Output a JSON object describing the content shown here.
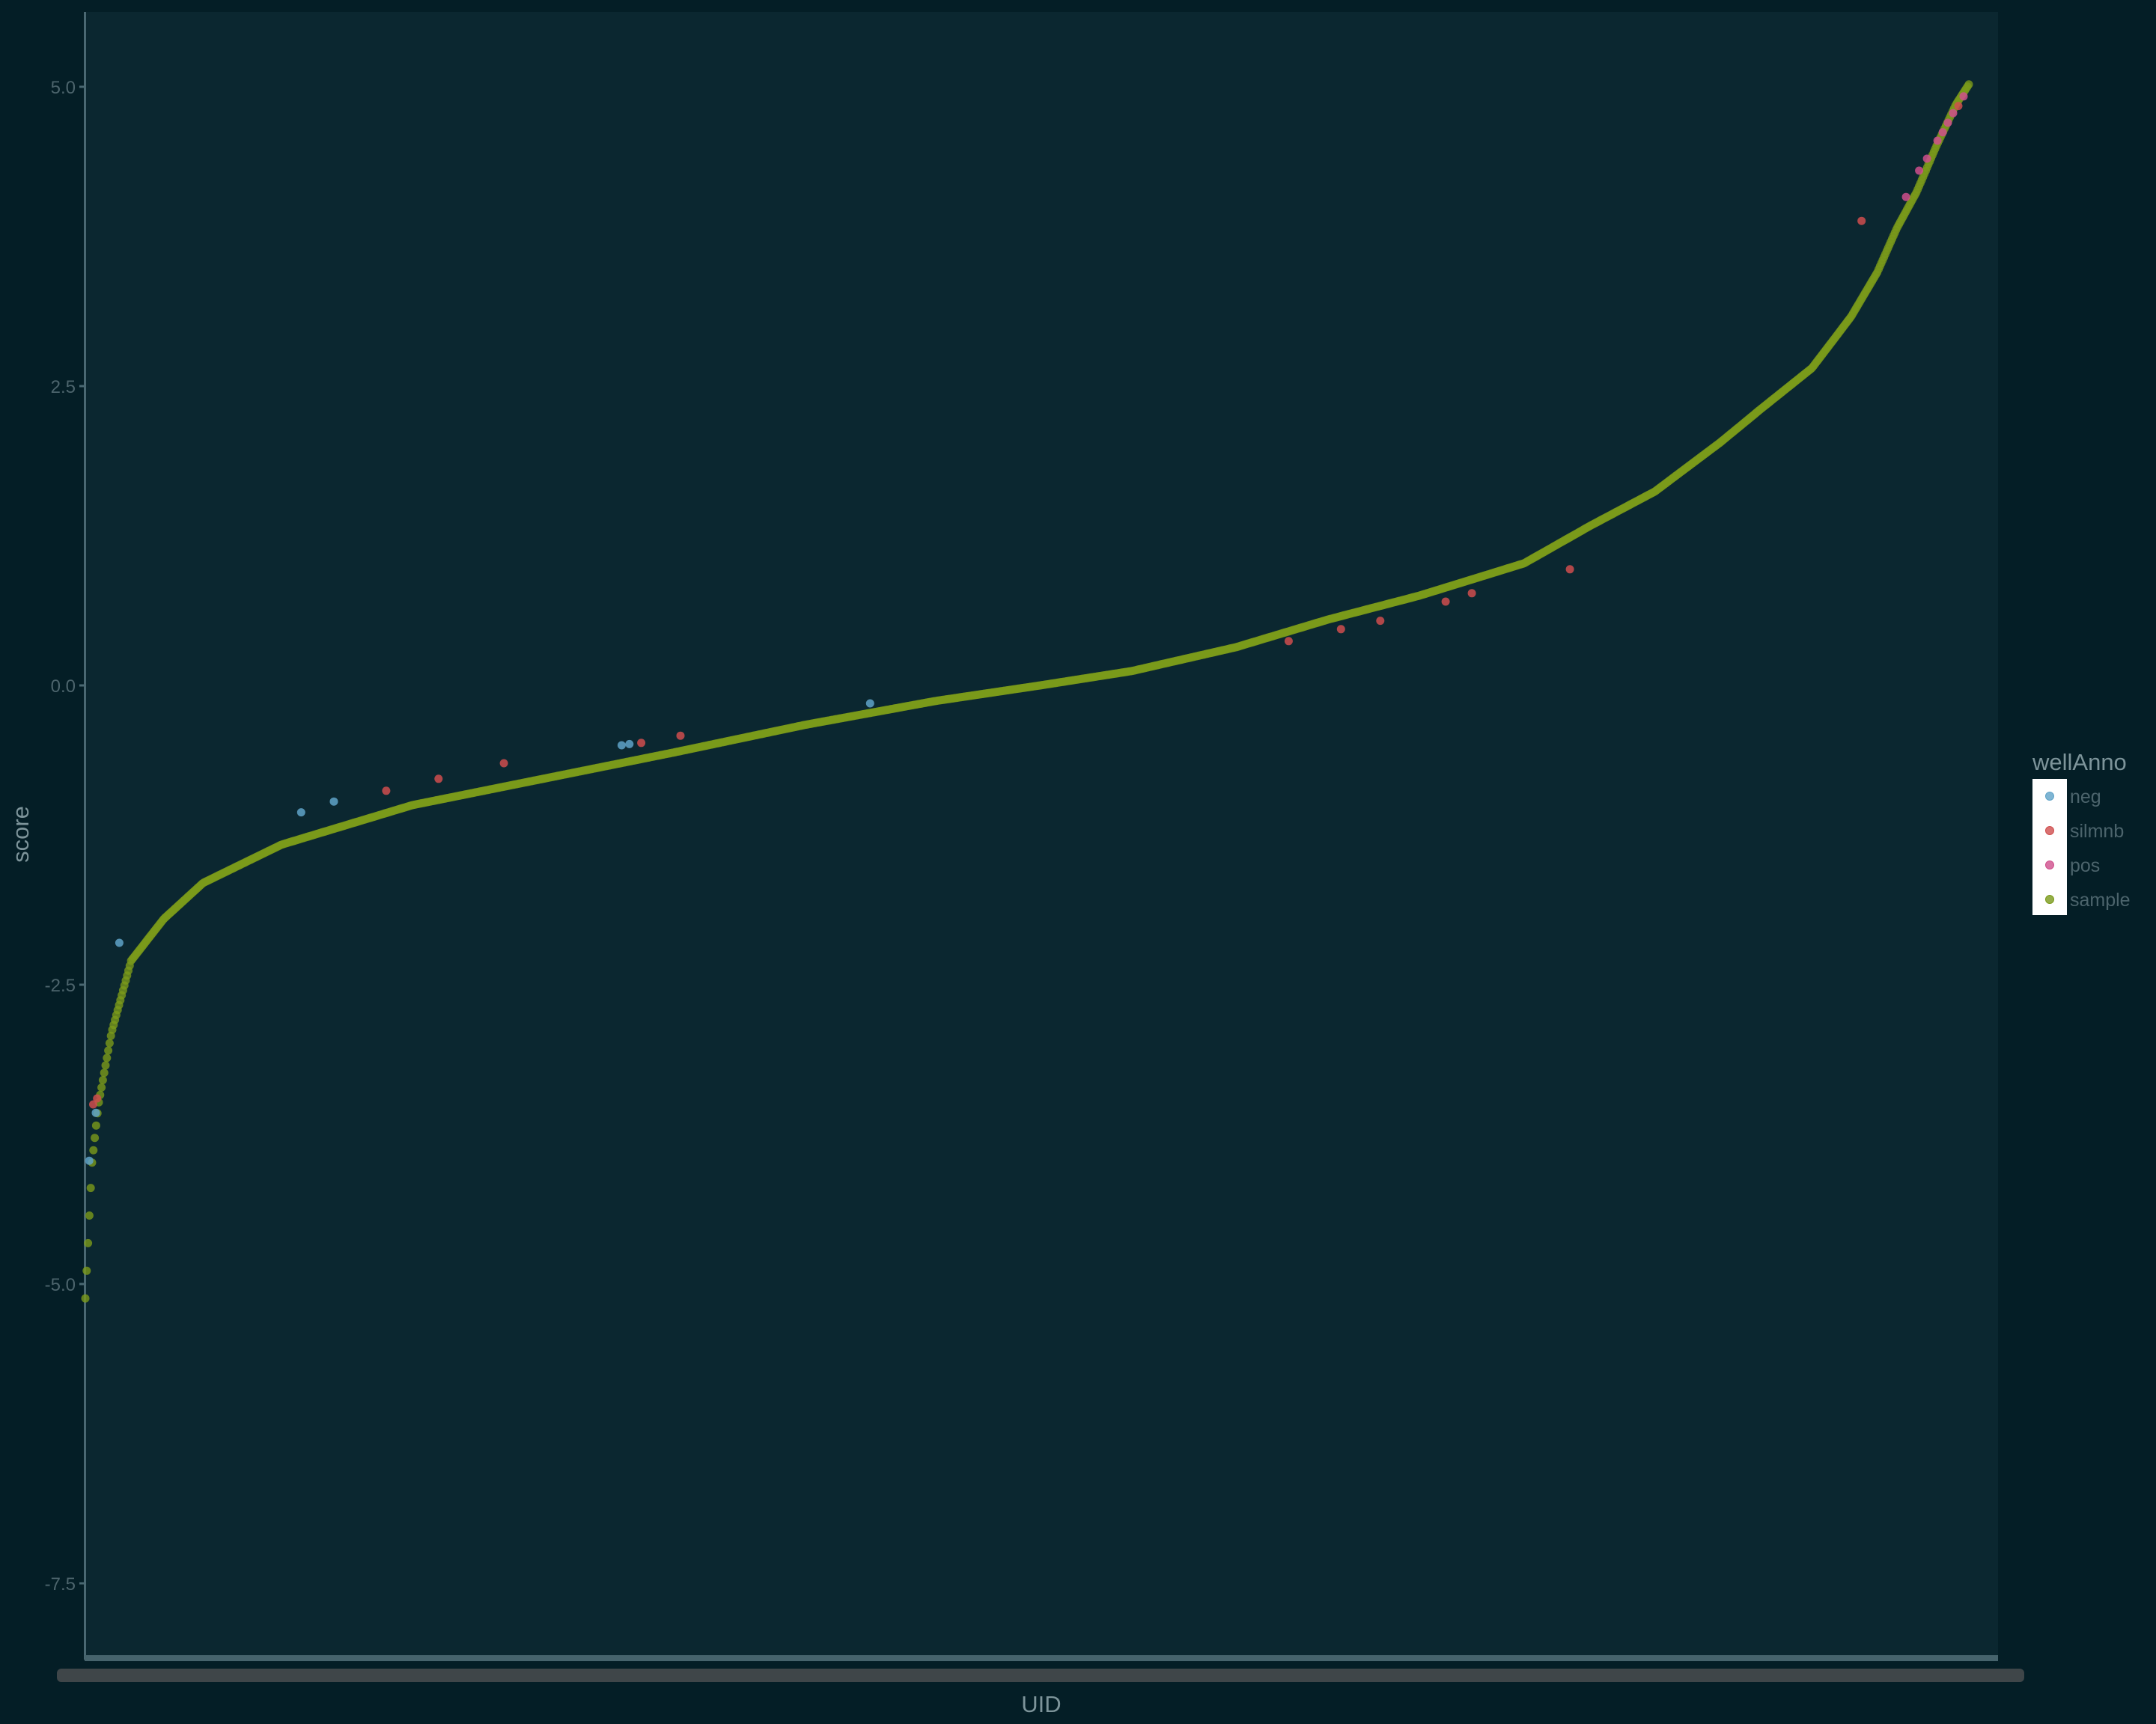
{
  "chart_data": {
    "type": "scatter",
    "title": "",
    "xlabel": "UID",
    "ylabel": "score",
    "ylim": [
      -8.05,
      5.55
    ],
    "y_ticks": [
      5.0,
      2.5,
      0.0,
      -2.5,
      -5.0,
      -7.5
    ],
    "y_tick_labels": [
      "5.0",
      "2.5",
      "0.0",
      "-2.5",
      "-5.0",
      "-7.5"
    ],
    "x_tick_labels": "unreadable (overplotted UID labels)",
    "grid": false,
    "legend": {
      "title": "wellAnno",
      "position": "right",
      "entries": [
        {
          "label": "neg",
          "color": "#5fa3c8"
        },
        {
          "label": "silmnb",
          "color": "#cf4e4e"
        },
        {
          "label": "pos",
          "color": "#cf4f8c"
        },
        {
          "label": "sample",
          "color": "#7a9a1a"
        }
      ]
    },
    "n_points": 1400,
    "curve_knots": [
      [
        0.0,
        -5.12
      ],
      [
        0.5,
        -4.0
      ],
      [
        1.0,
        -3.5
      ],
      [
        2.0,
        -2.9
      ],
      [
        3.5,
        -2.3
      ],
      [
        6.0,
        -1.95
      ],
      [
        9.0,
        -1.65
      ],
      [
        15.0,
        -1.33
      ],
      [
        25.0,
        -1.0
      ],
      [
        35.0,
        -0.78
      ],
      [
        45.0,
        -0.56
      ],
      [
        55.0,
        -0.33
      ],
      [
        65.0,
        -0.13
      ],
      [
        73.0,
        0.0
      ],
      [
        80.0,
        0.12
      ],
      [
        88.0,
        0.32
      ],
      [
        95.0,
        0.55
      ],
      [
        102.0,
        0.75
      ],
      [
        110.0,
        1.02
      ],
      [
        115.0,
        1.33
      ],
      [
        120.0,
        1.62
      ],
      [
        125.0,
        2.03
      ],
      [
        128.0,
        2.3
      ],
      [
        132.0,
        2.65
      ],
      [
        135.0,
        3.08
      ],
      [
        137.0,
        3.45
      ],
      [
        138.5,
        3.82
      ],
      [
        140.0,
        4.12
      ],
      [
        141.5,
        4.5
      ],
      [
        143.0,
        4.85
      ],
      [
        144.0,
        5.02
      ]
    ],
    "highlighted_points": [
      {
        "wellAnno": "neg",
        "x": 0.3,
        "score": -3.97
      },
      {
        "wellAnno": "neg",
        "x": 0.8,
        "score": -3.57
      },
      {
        "wellAnno": "silmnb",
        "x": 0.6,
        "score": -3.5
      },
      {
        "wellAnno": "silmnb",
        "x": 0.9,
        "score": -3.45
      },
      {
        "wellAnno": "neg",
        "x": 2.6,
        "score": -2.15
      },
      {
        "wellAnno": "neg",
        "x": 16.5,
        "score": -1.06
      },
      {
        "wellAnno": "neg",
        "x": 19.0,
        "score": -0.97
      },
      {
        "wellAnno": "silmnb",
        "x": 23.0,
        "score": -0.88
      },
      {
        "wellAnno": "silmnb",
        "x": 27.0,
        "score": -0.78
      },
      {
        "wellAnno": "silmnb",
        "x": 32.0,
        "score": -0.65
      },
      {
        "wellAnno": "neg",
        "x": 41.0,
        "score": -0.5
      },
      {
        "wellAnno": "neg",
        "x": 41.6,
        "score": -0.49
      },
      {
        "wellAnno": "silmnb",
        "x": 42.5,
        "score": -0.48
      },
      {
        "wellAnno": "silmnb",
        "x": 45.5,
        "score": -0.42
      },
      {
        "wellAnno": "neg",
        "x": 60.0,
        "score": -0.15
      },
      {
        "wellAnno": "silmnb",
        "x": 92.0,
        "score": 0.37
      },
      {
        "wellAnno": "silmnb",
        "x": 96.0,
        "score": 0.47
      },
      {
        "wellAnno": "silmnb",
        "x": 99.0,
        "score": 0.54
      },
      {
        "wellAnno": "silmnb",
        "x": 104.0,
        "score": 0.7
      },
      {
        "wellAnno": "silmnb",
        "x": 106.0,
        "score": 0.77
      },
      {
        "wellAnno": "silmnb",
        "x": 113.5,
        "score": 0.97
      },
      {
        "wellAnno": "silmnb",
        "x": 135.8,
        "score": 3.88
      },
      {
        "wellAnno": "pos",
        "x": 139.2,
        "score": 4.08
      },
      {
        "wellAnno": "pos",
        "x": 140.2,
        "score": 4.3
      },
      {
        "wellAnno": "pos",
        "x": 140.8,
        "score": 4.4
      },
      {
        "wellAnno": "pos",
        "x": 141.6,
        "score": 4.55
      },
      {
        "wellAnno": "pos",
        "x": 142.0,
        "score": 4.62
      },
      {
        "wellAnno": "pos",
        "x": 142.4,
        "score": 4.7
      },
      {
        "wellAnno": "pos",
        "x": 142.8,
        "score": 4.78
      },
      {
        "wellAnno": "silmnb",
        "x": 143.2,
        "score": 4.84
      },
      {
        "wellAnno": "pos",
        "x": 143.6,
        "score": 4.92
      }
    ],
    "colors": {
      "page_background": "#041e26",
      "panel_background": "#0b2730",
      "axis_line": "#4a6872",
      "tick_text": "#4c646c",
      "label_text": "#7d949a",
      "legend_key_background": "#ffffff",
      "x_label_strip": "#3f4649"
    }
  }
}
